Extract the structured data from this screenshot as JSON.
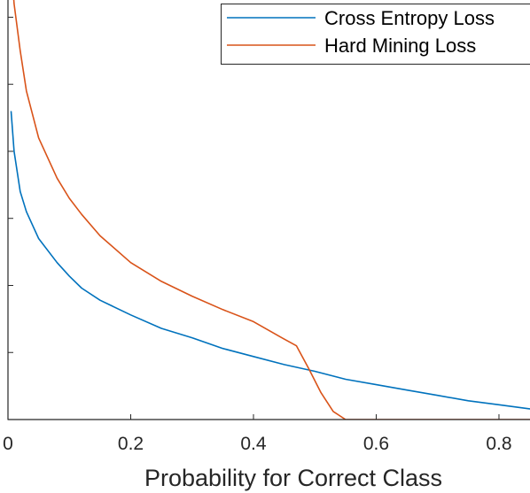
{
  "chart_data": {
    "type": "line",
    "title": "",
    "xlabel": "Probability for Correct Class",
    "ylabel": "",
    "xlim": [
      0,
      0.93
    ],
    "ylim": [
      0,
      3.3
    ],
    "grid": false,
    "legend_position": "top-right",
    "x_ticks": [
      0,
      0.2,
      0.4,
      0.6,
      0.8
    ],
    "x_tick_labels": [
      "0",
      "0.2",
      "0.4",
      "0.6",
      "0.8"
    ],
    "y_ticks": [
      0.5,
      1,
      1.5,
      2,
      2.5,
      3
    ],
    "series": [
      {
        "name": "Cross Entropy Loss",
        "color": "#0072BD",
        "x": [
          0.005,
          0.01,
          0.02,
          0.03,
          0.05,
          0.08,
          0.1,
          0.12,
          0.15,
          0.2,
          0.25,
          0.3,
          0.35,
          0.4,
          0.45,
          0.5,
          0.55,
          0.6,
          0.65,
          0.7,
          0.75,
          0.8,
          0.85,
          0.9,
          0.93
        ],
        "y": [
          2.3,
          2.0,
          1.7,
          1.55,
          1.35,
          1.17,
          1.07,
          0.98,
          0.89,
          0.78,
          0.68,
          0.61,
          0.53,
          0.47,
          0.41,
          0.36,
          0.3,
          0.26,
          0.22,
          0.18,
          0.14,
          0.11,
          0.08,
          0.04,
          0.03
        ]
      },
      {
        "name": "Hard Mining Loss",
        "color": "#D95319",
        "x": [
          0.005,
          0.01,
          0.02,
          0.03,
          0.05,
          0.08,
          0.1,
          0.12,
          0.15,
          0.2,
          0.25,
          0.3,
          0.35,
          0.4,
          0.45,
          0.47,
          0.49,
          0.51,
          0.53,
          0.55,
          0.6,
          0.7,
          0.8,
          0.93
        ],
        "y": [
          3.4,
          3.1,
          2.75,
          2.45,
          2.1,
          1.8,
          1.65,
          1.53,
          1.37,
          1.17,
          1.03,
          0.92,
          0.82,
          0.73,
          0.6,
          0.55,
          0.38,
          0.2,
          0.06,
          0.0,
          0.0,
          0.0,
          0.0,
          0.0
        ]
      }
    ]
  }
}
